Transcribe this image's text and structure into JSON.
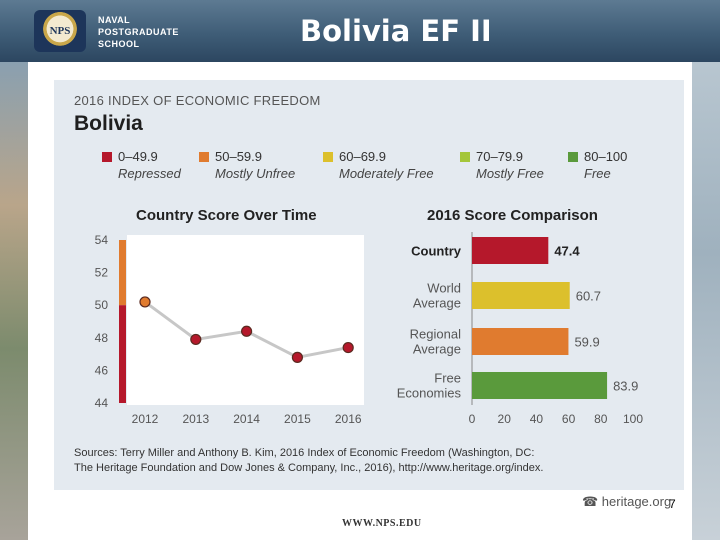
{
  "header": {
    "title": "Bolivia EF II",
    "logo_seal_text": "NPS",
    "logo_lines": [
      "NAVAL",
      "POSTGRADUATE",
      "SCHOOL"
    ]
  },
  "panel": {
    "heading": "2016 INDEX OF ECONOMIC FREEDOM",
    "country": "Bolivia"
  },
  "legend": [
    {
      "range": "0–49.9",
      "label": "Repressed",
      "color": "#b5182b"
    },
    {
      "range": "50–59.9",
      "label": "Mostly Unfree",
      "color": "#e07b2f"
    },
    {
      "range": "60–69.9",
      "label": "Moderately Free",
      "color": "#dcc02c"
    },
    {
      "range": "70–79.9",
      "label": "Mostly Free",
      "color": "#a4c63a"
    },
    {
      "range": "80–100",
      "label": "Free",
      "color": "#5a9a3c"
    }
  ],
  "chart_data": [
    {
      "type": "line",
      "title": "Country Score Over Time",
      "x": [
        "2012",
        "2013",
        "2014",
        "2015",
        "2016"
      ],
      "values": [
        50.2,
        47.9,
        48.4,
        46.8,
        47.4
      ],
      "ylim": [
        44,
        54
      ],
      "yticks": [
        44,
        46,
        48,
        50,
        52,
        54
      ],
      "marker_colors": [
        "#e07b2f",
        "#b5182b",
        "#b5182b",
        "#b5182b",
        "#b5182b"
      ]
    },
    {
      "type": "bar",
      "title": "2016 Score Comparison",
      "categories": [
        "Country",
        "World Average",
        "Regional Average",
        "Free Economies"
      ],
      "values": [
        47.4,
        60.7,
        59.9,
        83.9
      ],
      "colors": [
        "#b5182b",
        "#dcc02c",
        "#e07b2f",
        "#5a9a3c"
      ],
      "xlim": [
        0,
        100
      ],
      "xticks": [
        0,
        20,
        40,
        60,
        80,
        100
      ]
    }
  ],
  "sources": {
    "line1": "Sources: Terry Miller and Anthony B. Kim, 2016 Index of Economic Freedom (Washington, DC:",
    "line2": "The Heritage Foundation and Dow Jones & Company, Inc., 2016), http://www.heritage.org/index."
  },
  "footer": {
    "heritage": "☎ heritage.org",
    "page": "7",
    "url": "WWW.NPS.EDU"
  }
}
